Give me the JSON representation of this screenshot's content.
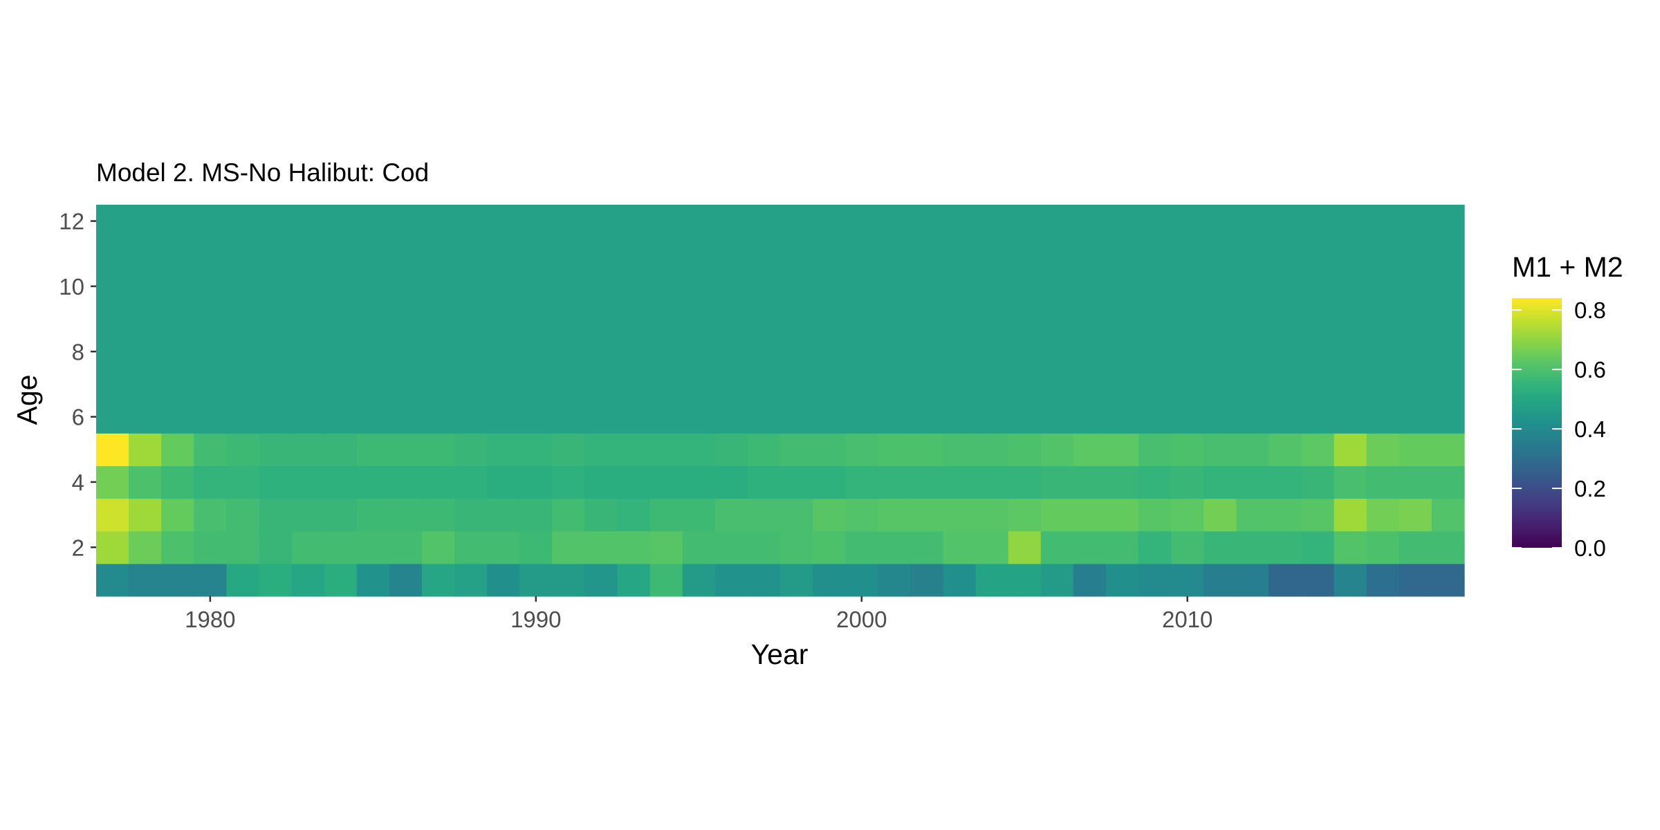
{
  "chart_data": {
    "type": "heatmap",
    "title": "Model 2. MS-No Halibut: Cod",
    "xlabel": "Year",
    "ylabel": "Age",
    "x": [
      1977,
      1978,
      1979,
      1980,
      1981,
      1982,
      1983,
      1984,
      1985,
      1986,
      1987,
      1988,
      1989,
      1990,
      1991,
      1992,
      1993,
      1994,
      1995,
      1996,
      1997,
      1998,
      1999,
      2000,
      2001,
      2002,
      2003,
      2004,
      2005,
      2006,
      2007,
      2008,
      2009,
      2010,
      2011,
      2012,
      2013,
      2014,
      2015,
      2016,
      2017,
      2018
    ],
    "xlim": [
      1976.5,
      2018.5
    ],
    "ylim": [
      0.5,
      12.5
    ],
    "x_ticks": [
      1980,
      1990,
      2000,
      2010
    ],
    "y_ticks": [
      2,
      4,
      6,
      8,
      10,
      12
    ],
    "rows": [
      {
        "age": 1,
        "values": [
          0.4,
          0.38,
          0.38,
          0.38,
          0.51,
          0.53,
          0.5,
          0.53,
          0.43,
          0.38,
          0.5,
          0.48,
          0.42,
          0.46,
          0.46,
          0.44,
          0.5,
          0.57,
          0.46,
          0.43,
          0.43,
          0.46,
          0.42,
          0.42,
          0.39,
          0.37,
          0.42,
          0.49,
          0.49,
          0.46,
          0.36,
          0.42,
          0.4,
          0.4,
          0.36,
          0.36,
          0.28,
          0.28,
          0.38,
          0.31,
          0.29,
          0.29
        ]
      },
      {
        "age": 2,
        "values": [
          0.72,
          0.65,
          0.6,
          0.58,
          0.58,
          0.56,
          0.58,
          0.58,
          0.58,
          0.58,
          0.61,
          0.58,
          0.58,
          0.57,
          0.61,
          0.61,
          0.61,
          0.62,
          0.58,
          0.58,
          0.58,
          0.59,
          0.6,
          0.58,
          0.58,
          0.58,
          0.61,
          0.61,
          0.7,
          0.58,
          0.58,
          0.58,
          0.55,
          0.58,
          0.56,
          0.56,
          0.56,
          0.55,
          0.61,
          0.6,
          0.58,
          0.58
        ]
      },
      {
        "age": 3,
        "values": [
          0.78,
          0.72,
          0.64,
          0.59,
          0.58,
          0.56,
          0.56,
          0.56,
          0.57,
          0.57,
          0.57,
          0.56,
          0.56,
          0.56,
          0.58,
          0.56,
          0.55,
          0.57,
          0.57,
          0.59,
          0.59,
          0.59,
          0.62,
          0.61,
          0.62,
          0.62,
          0.62,
          0.62,
          0.63,
          0.64,
          0.64,
          0.64,
          0.62,
          0.63,
          0.66,
          0.61,
          0.61,
          0.62,
          0.72,
          0.66,
          0.67,
          0.61
        ]
      },
      {
        "age": 4,
        "values": [
          0.66,
          0.6,
          0.57,
          0.55,
          0.55,
          0.54,
          0.54,
          0.54,
          0.54,
          0.54,
          0.54,
          0.54,
          0.53,
          0.53,
          0.54,
          0.53,
          0.53,
          0.53,
          0.53,
          0.53,
          0.54,
          0.54,
          0.54,
          0.55,
          0.55,
          0.55,
          0.55,
          0.55,
          0.55,
          0.56,
          0.56,
          0.56,
          0.55,
          0.56,
          0.55,
          0.55,
          0.55,
          0.56,
          0.59,
          0.58,
          0.58,
          0.58
        ]
      },
      {
        "age": 5,
        "values": [
          0.84,
          0.72,
          0.64,
          0.58,
          0.57,
          0.56,
          0.56,
          0.56,
          0.57,
          0.57,
          0.57,
          0.56,
          0.55,
          0.55,
          0.56,
          0.55,
          0.55,
          0.55,
          0.55,
          0.56,
          0.57,
          0.58,
          0.58,
          0.59,
          0.6,
          0.6,
          0.59,
          0.59,
          0.6,
          0.61,
          0.63,
          0.63,
          0.59,
          0.6,
          0.59,
          0.59,
          0.61,
          0.63,
          0.72,
          0.65,
          0.64,
          0.64
        ]
      },
      {
        "age": 6,
        "value": 0.48
      },
      {
        "age": 7,
        "value": 0.48
      },
      {
        "age": 8,
        "value": 0.48
      },
      {
        "age": 9,
        "value": 0.48
      },
      {
        "age": 10,
        "value": 0.48
      },
      {
        "age": 11,
        "value": 0.48
      },
      {
        "age": 12,
        "value": 0.48
      }
    ],
    "legend": {
      "title": "M1 + M2",
      "placement": "right",
      "range": [
        0.0,
        0.84
      ],
      "ticks": [
        0.0,
        0.2,
        0.4,
        0.6,
        0.8
      ],
      "tick_labels": [
        "0.0",
        "0.2",
        "0.4",
        "0.6",
        "0.8"
      ],
      "colormap": "viridis"
    }
  }
}
